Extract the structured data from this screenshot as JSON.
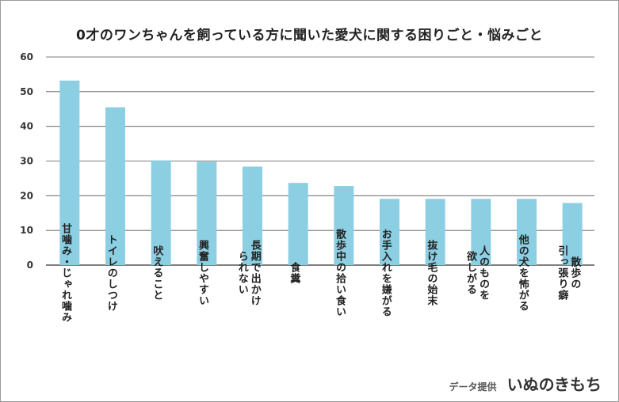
{
  "chart_data": {
    "type": "bar",
    "title": "0才のワンちゃんを飼っている方に聞いた愛犬に関する困りごと・悩みごと",
    "categories": [
      "甘噛み・じゃれ噛み",
      "トイレのしつけ",
      "吠えること",
      "興奮しやすい",
      "長期で出かけ|られない",
      "食糞",
      "散歩中の拾い食い",
      "お手入れを嫌がる",
      "抜け毛の始末",
      "人のものを|欲しがる",
      "他の犬を怖がる",
      "散歩の|引っ張り癖"
    ],
    "values": [
      53.2,
      45.5,
      30.2,
      29.8,
      28.4,
      23.7,
      22.8,
      19.1,
      19.1,
      19.1,
      19.1,
      17.9
    ],
    "ylim": [
      0,
      60
    ],
    "yticks": [
      0,
      10,
      20,
      30,
      40,
      50,
      60
    ],
    "grid": true,
    "bar_color": "#8ccfe3",
    "xlabel": "",
    "ylabel": ""
  },
  "credit": {
    "label": "データ提供",
    "brand": "いぬのきもち"
  }
}
